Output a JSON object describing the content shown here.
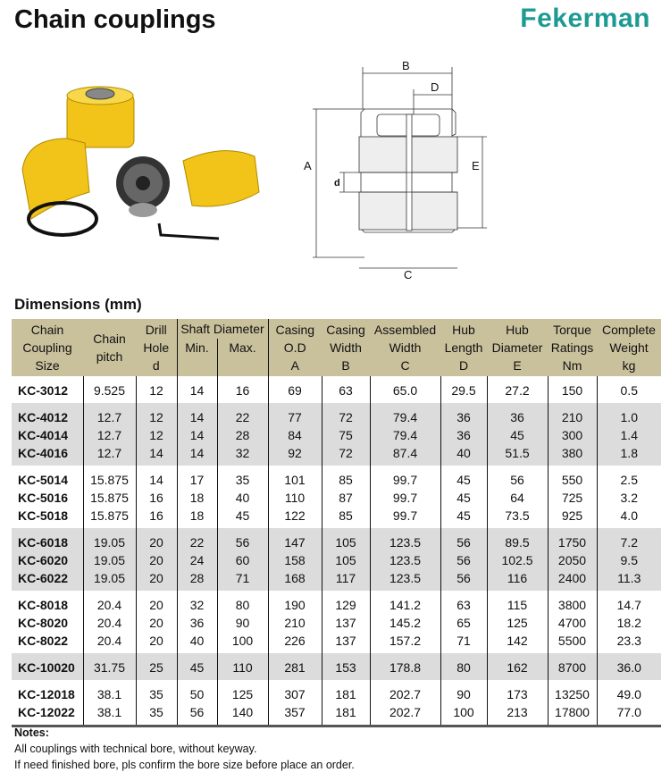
{
  "title": "Chain couplings",
  "logo": "Fekerman",
  "diagram_labels": {
    "A": "A",
    "B": "B",
    "C": "C",
    "D": "D",
    "E": "E",
    "d": "d"
  },
  "section_title": "Dimensions (mm)",
  "table": {
    "headers": {
      "size": [
        "Chain",
        "Coupling",
        "Size"
      ],
      "pitch": [
        "Chain",
        "pitch"
      ],
      "drill": [
        "Drill",
        "Hole",
        "d"
      ],
      "shaft": "Shaft Diameter",
      "min": "Min.",
      "max": "Max.",
      "od": [
        "Casing",
        "O.D",
        "A"
      ],
      "width": [
        "Casing",
        "Width",
        "B"
      ],
      "assembled": [
        "Assembled",
        "Width",
        "C"
      ],
      "hub_len": [
        "Hub",
        "Length",
        "D"
      ],
      "hub_dia": [
        "Hub",
        "Diameter",
        "E"
      ],
      "torque": [
        "Torque",
        "Ratings",
        "Nm"
      ],
      "weight": [
        "Complete",
        "Weight",
        "kg"
      ]
    },
    "groups": [
      [
        [
          "KC-3012",
          "9.525",
          "12",
          "14",
          "16",
          "69",
          "63",
          "65.0",
          "29.5",
          "27.2",
          "150",
          "0.5"
        ]
      ],
      [
        [
          "KC-4012",
          "12.7",
          "12",
          "14",
          "22",
          "77",
          "72",
          "79.4",
          "36",
          "36",
          "210",
          "1.0"
        ],
        [
          "KC-4014",
          "12.7",
          "12",
          "14",
          "28",
          "84",
          "75",
          "79.4",
          "36",
          "45",
          "300",
          "1.4"
        ],
        [
          "KC-4016",
          "12.7",
          "14",
          "14",
          "32",
          "92",
          "72",
          "87.4",
          "40",
          "51.5",
          "380",
          "1.8"
        ]
      ],
      [
        [
          "KC-5014",
          "15.875",
          "14",
          "17",
          "35",
          "101",
          "85",
          "99.7",
          "45",
          "56",
          "550",
          "2.5"
        ],
        [
          "KC-5016",
          "15.875",
          "16",
          "18",
          "40",
          "110",
          "87",
          "99.7",
          "45",
          "64",
          "725",
          "3.2"
        ],
        [
          "KC-5018",
          "15.875",
          "16",
          "18",
          "45",
          "122",
          "85",
          "99.7",
          "45",
          "73.5",
          "925",
          "4.0"
        ]
      ],
      [
        [
          "KC-6018",
          "19.05",
          "20",
          "22",
          "56",
          "147",
          "105",
          "123.5",
          "56",
          "89.5",
          "1750",
          "7.2"
        ],
        [
          "KC-6020",
          "19.05",
          "20",
          "24",
          "60",
          "158",
          "105",
          "123.5",
          "56",
          "102.5",
          "2050",
          "9.5"
        ],
        [
          "KC-6022",
          "19.05",
          "20",
          "28",
          "71",
          "168",
          "117",
          "123.5",
          "56",
          "116",
          "2400",
          "11.3"
        ]
      ],
      [
        [
          "KC-8018",
          "20.4",
          "20",
          "32",
          "80",
          "190",
          "129",
          "141.2",
          "63",
          "115",
          "3800",
          "14.7"
        ],
        [
          "KC-8020",
          "20.4",
          "20",
          "36",
          "90",
          "210",
          "137",
          "145.2",
          "65",
          "125",
          "4700",
          "18.2"
        ],
        [
          "KC-8022",
          "20.4",
          "20",
          "40",
          "100",
          "226",
          "137",
          "157.2",
          "71",
          "142",
          "5500",
          "23.3"
        ]
      ],
      [
        [
          "KC-10020",
          "31.75",
          "25",
          "45",
          "110",
          "281",
          "153",
          "178.8",
          "80",
          "162",
          "8700",
          "36.0"
        ]
      ],
      [
        [
          "KC-12018",
          "38.1",
          "35",
          "50",
          "125",
          "307",
          "181",
          "202.7",
          "90",
          "173",
          "13250",
          "49.0"
        ],
        [
          "KC-12022",
          "38.1",
          "35",
          "56",
          "140",
          "357",
          "181",
          "202.7",
          "100",
          "213",
          "17800",
          "77.0"
        ]
      ]
    ]
  },
  "notes": {
    "heading": "Notes:",
    "lines": [
      "All couplings with technical bore, without keyway.",
      "If need finished bore, pls confirm the bore size before place an order."
    ]
  },
  "colors": {
    "logo": "#1d9b93",
    "header_bg": "#c9c09c",
    "band": "#dcdcdc",
    "coupling_yellow": "#f2c318"
  }
}
